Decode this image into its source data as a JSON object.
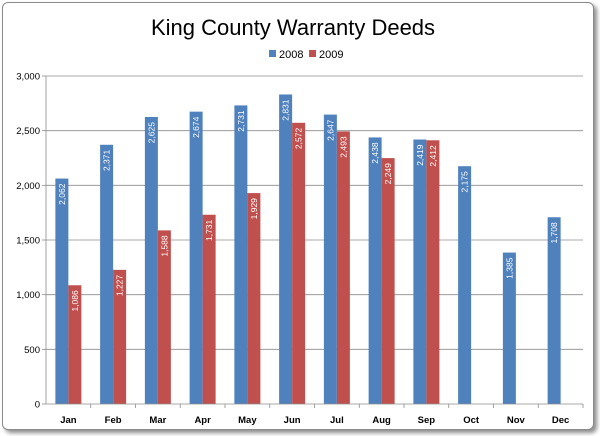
{
  "chart_data": {
    "type": "bar",
    "title": "King County Warranty Deeds",
    "categories": [
      "Jan",
      "Feb",
      "Mar",
      "Apr",
      "May",
      "Jun",
      "Jul",
      "Aug",
      "Sep",
      "Oct",
      "Nov",
      "Dec"
    ],
    "series": [
      {
        "name": "2008",
        "color": "#4F81BD",
        "values": [
          2062,
          2371,
          2625,
          2674,
          2731,
          2831,
          2647,
          2438,
          2419,
          2175,
          1385,
          1708
        ],
        "labels": [
          "2,062",
          "2,371",
          "2,625",
          "2,674",
          "2,731",
          "2,831",
          "2,647",
          "2,438",
          "2,419",
          "2,175",
          "1,385",
          "1,708"
        ]
      },
      {
        "name": "2009",
        "color": "#C0504D",
        "values": [
          1086,
          1227,
          1588,
          1731,
          1929,
          2572,
          2493,
          2249,
          2412,
          null,
          null,
          null
        ],
        "labels": [
          "1,086",
          "1,227",
          "1,588",
          "1,731",
          "1,929",
          "2,572",
          "2,493",
          "2,249",
          "2,412",
          null,
          null,
          null
        ]
      }
    ],
    "ylim": [
      0,
      3000
    ],
    "yticks": [
      0,
      500,
      1000,
      1500,
      2000,
      2500,
      3000
    ],
    "ytick_labels": [
      "0",
      "500",
      "1,000",
      "1,500",
      "2,000",
      "2,500",
      "3,000"
    ],
    "grid": true,
    "legend": "top-center"
  }
}
